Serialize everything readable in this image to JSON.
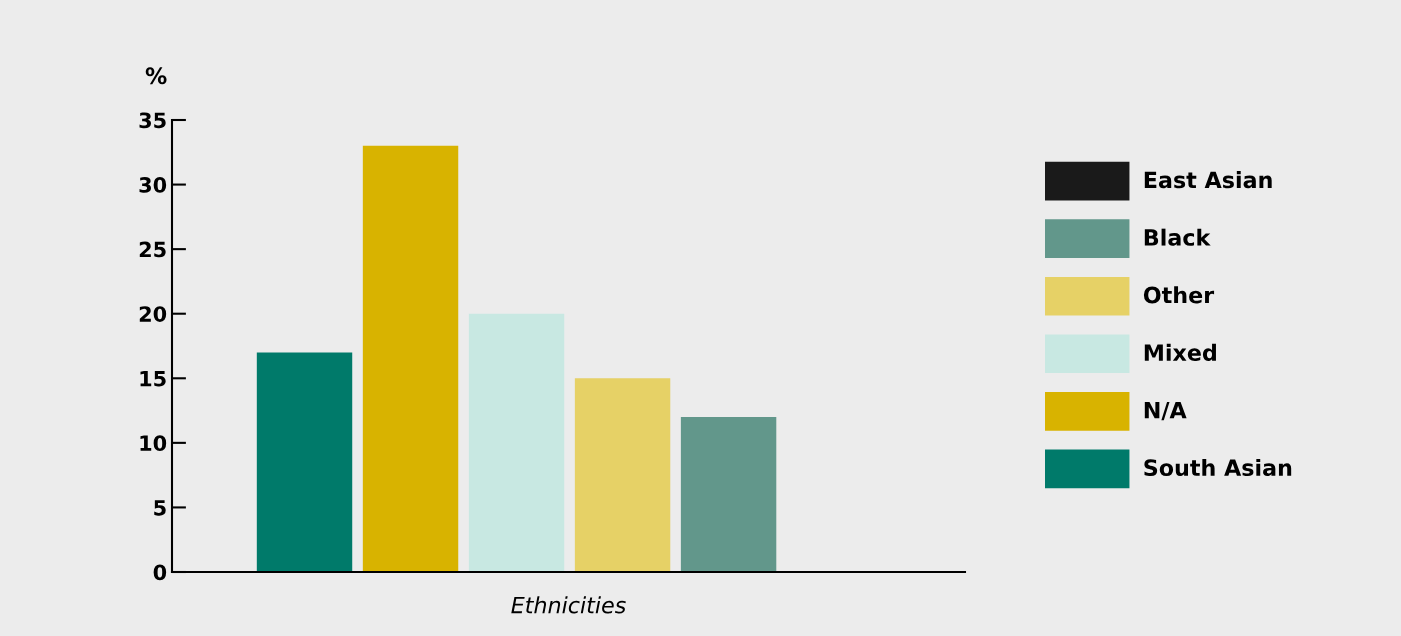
{
  "chart_data": {
    "type": "bar",
    "xlabel": "Ethnicities",
    "ylabel": "%",
    "categories": [
      null,
      null,
      null,
      null,
      null,
      null
    ],
    "series": [
      {
        "name": "South Asian",
        "color": "#007a6a",
        "values": [
          17,
          null,
          null,
          null,
          null,
          null
        ]
      },
      {
        "name": "N/A",
        "color": "#d8b300",
        "values": [
          null,
          33,
          null,
          null,
          null,
          null
        ]
      },
      {
        "name": "Mixed",
        "color": "#c8e8e2",
        "values": [
          null,
          null,
          20,
          null,
          null,
          null
        ]
      },
      {
        "name": "Other",
        "color": "#e6d166",
        "values": [
          null,
          null,
          null,
          15,
          null,
          null
        ]
      },
      {
        "name": "Black",
        "color": "#62978b",
        "values": [
          null,
          null,
          null,
          null,
          12,
          null
        ]
      },
      {
        "name": "East Asian",
        "color": "#1a1a1a",
        "values": [
          null,
          null,
          null,
          null,
          null,
          0
        ]
      }
    ],
    "ylim": [
      0,
      35
    ],
    "yticks": [
      0,
      5,
      10,
      15,
      20,
      25,
      30,
      35
    ],
    "grid": false,
    "legend": "right"
  }
}
